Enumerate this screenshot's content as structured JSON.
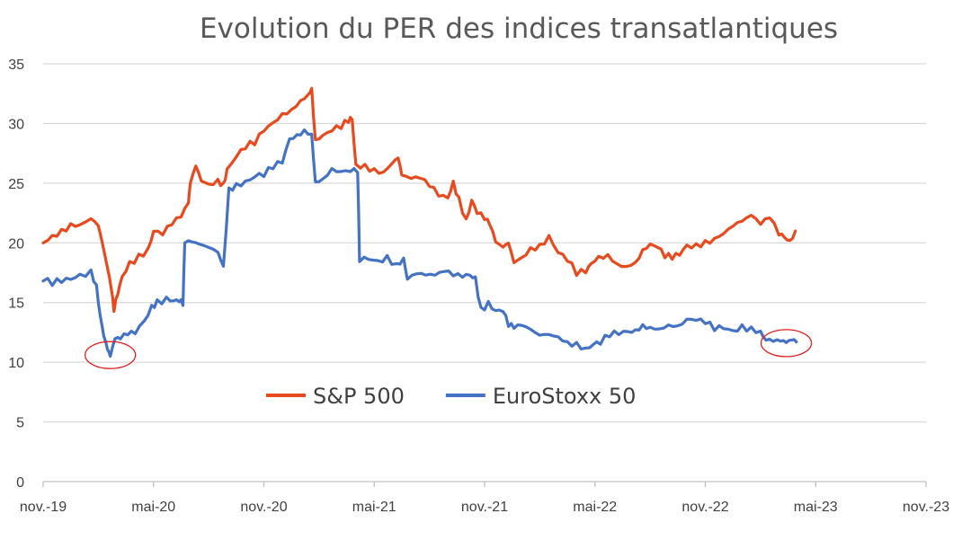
{
  "chart_data": {
    "type": "line",
    "title": "Evolution du PER des indices transatlantiques",
    "xlabel": "",
    "ylabel": "",
    "ylim": [
      0,
      35
    ],
    "yticks": [
      0,
      5,
      10,
      15,
      20,
      25,
      30,
      35
    ],
    "xlim": [
      "2019-11",
      "2023-11"
    ],
    "xticks": [
      "nov.-19",
      "mai-20",
      "nov.-20",
      "mai-21",
      "nov.-21",
      "mai-22",
      "nov.-22",
      "mai-23",
      "nov.-23"
    ],
    "grid": true,
    "legend": "bottom-center, inside plot",
    "series": [
      {
        "name": "S&P 500",
        "color": "#e8491d",
        "points": [
          [
            0,
            20
          ],
          [
            0.5,
            20.4
          ],
          [
            1,
            21
          ],
          [
            1.5,
            21.5
          ],
          [
            2,
            21.8
          ],
          [
            2.6,
            22.1
          ],
          [
            3,
            21.6
          ],
          [
            3.2,
            19.8
          ],
          [
            3.5,
            17.8
          ],
          [
            3.7,
            16
          ],
          [
            3.85,
            14.5
          ],
          [
            4.05,
            15.8
          ],
          [
            4.3,
            17.3
          ],
          [
            4.7,
            18.3
          ],
          [
            5.2,
            18.8
          ],
          [
            5.7,
            19.5
          ],
          [
            6,
            21
          ],
          [
            6.5,
            21
          ],
          [
            7,
            21.5
          ],
          [
            7.5,
            22.2
          ],
          [
            7.9,
            23
          ],
          [
            8,
            25
          ],
          [
            8.3,
            26.4
          ],
          [
            8.6,
            25.5
          ],
          [
            9,
            25
          ],
          [
            9.5,
            25.3
          ],
          [
            9.8,
            24.8
          ],
          [
            10,
            26
          ],
          [
            10.5,
            27.3
          ],
          [
            11,
            28
          ],
          [
            11.5,
            28.5
          ],
          [
            12,
            29.2
          ],
          [
            12.5,
            30
          ],
          [
            13,
            30.5
          ],
          [
            13.5,
            31.3
          ],
          [
            14,
            32
          ],
          [
            14.4,
            32.7
          ],
          [
            14.6,
            32.9
          ],
          [
            14.8,
            28.5
          ],
          [
            15.2,
            28.8
          ],
          [
            15.7,
            29.3
          ],
          [
            16.2,
            29.8
          ],
          [
            16.6,
            30.2
          ],
          [
            16.8,
            30.5
          ],
          [
            17,
            26.3
          ],
          [
            17.5,
            26.5
          ],
          [
            18,
            26
          ],
          [
            18.5,
            26.2
          ],
          [
            19,
            26.8
          ],
          [
            19.3,
            27.3
          ],
          [
            19.5,
            25.5
          ],
          [
            20,
            25.2
          ],
          [
            20.5,
            25.3
          ],
          [
            21,
            24.8
          ],
          [
            21.5,
            24.2
          ],
          [
            22,
            23.8
          ],
          [
            22.3,
            25.2
          ],
          [
            22.6,
            23.5
          ],
          [
            23,
            22
          ],
          [
            23.3,
            23.5
          ],
          [
            23.6,
            22.8
          ],
          [
            24,
            22
          ],
          [
            24.3,
            21.5
          ],
          [
            24.6,
            19.8
          ],
          [
            25,
            19.5
          ],
          [
            25.3,
            20
          ],
          [
            25.6,
            18.5
          ],
          [
            26,
            19
          ],
          [
            26.5,
            19.5
          ],
          [
            27,
            19.8
          ],
          [
            27.5,
            20.3
          ],
          [
            28,
            19.3
          ],
          [
            28.5,
            18.5
          ],
          [
            29,
            17.6
          ],
          [
            29.5,
            17.4
          ],
          [
            29.8,
            18.2
          ],
          [
            30.2,
            18.6
          ],
          [
            30.7,
            19
          ],
          [
            31.2,
            18.4
          ],
          [
            31.7,
            18.2
          ],
          [
            32.2,
            18.5
          ],
          [
            32.6,
            19.2
          ],
          [
            33,
            19.8
          ],
          [
            33.4,
            19.4
          ],
          [
            33.8,
            19
          ],
          [
            34.2,
            18.7
          ],
          [
            34.6,
            19.2
          ],
          [
            35,
            19.6
          ],
          [
            35.5,
            19.8
          ],
          [
            36,
            20
          ],
          [
            36.5,
            20.5
          ],
          [
            37,
            21
          ],
          [
            37.5,
            21.5
          ],
          [
            38,
            21.8
          ],
          [
            38.5,
            22
          ],
          [
            39,
            21.5
          ],
          [
            39.5,
            22
          ],
          [
            40,
            21
          ],
          [
            40.3,
            20.5
          ],
          [
            40.6,
            20.3
          ],
          [
            40.9,
            21
          ]
        ]
      },
      {
        "name": "EuroStoxx 50",
        "color": "#4472c4",
        "points": [
          [
            0,
            16.8
          ],
          [
            0.5,
            16.7
          ],
          [
            1,
            16.8
          ],
          [
            1.5,
            17
          ],
          [
            2,
            17.2
          ],
          [
            2.6,
            17.5
          ],
          [
            2.9,
            16.5
          ],
          [
            3.1,
            14
          ],
          [
            3.3,
            12.5
          ],
          [
            3.5,
            11
          ],
          [
            3.65,
            10.5
          ],
          [
            3.9,
            11.6
          ],
          [
            4.2,
            12
          ],
          [
            4.6,
            12.3
          ],
          [
            5,
            12.7
          ],
          [
            5.5,
            13.5
          ],
          [
            5.9,
            14.7
          ],
          [
            6.2,
            15
          ],
          [
            6.7,
            15.3
          ],
          [
            7.1,
            15.3
          ],
          [
            7.4,
            15.2
          ],
          [
            7.6,
            15
          ],
          [
            7.7,
            19.8
          ],
          [
            8.1,
            20
          ],
          [
            8.5,
            19.6
          ],
          [
            9,
            19.8
          ],
          [
            9.5,
            19.3
          ],
          [
            9.8,
            18.3
          ],
          [
            10.1,
            24.5
          ],
          [
            10.5,
            24.8
          ],
          [
            11,
            25
          ],
          [
            11.5,
            25.5
          ],
          [
            12,
            25.8
          ],
          [
            12.5,
            26.3
          ],
          [
            13,
            26.8
          ],
          [
            13.4,
            28.4
          ],
          [
            13.8,
            29
          ],
          [
            14.2,
            29.3
          ],
          [
            14.6,
            29.4
          ],
          [
            14.8,
            25.2
          ],
          [
            15.2,
            25.5
          ],
          [
            15.7,
            26
          ],
          [
            16.2,
            25.8
          ],
          [
            16.7,
            25.9
          ],
          [
            17.1,
            26
          ],
          [
            17.2,
            18.7
          ],
          [
            17.7,
            18.6
          ],
          [
            18.2,
            18.5
          ],
          [
            18.7,
            18.6
          ],
          [
            19.2,
            18.3
          ],
          [
            19.6,
            18.7
          ],
          [
            19.8,
            17.3
          ],
          [
            20.3,
            17.4
          ],
          [
            20.8,
            17.3
          ],
          [
            21.3,
            17
          ],
          [
            21.8,
            17.5
          ],
          [
            22.3,
            17.3
          ],
          [
            22.8,
            17.3
          ],
          [
            23.2,
            17.5
          ],
          [
            23.5,
            17
          ],
          [
            23.8,
            14.5
          ],
          [
            24.2,
            14.8
          ],
          [
            24.6,
            14.5
          ],
          [
            25,
            14.3
          ],
          [
            25.3,
            13.3
          ],
          [
            25.6,
            12.7
          ],
          [
            26,
            13
          ],
          [
            26.5,
            12.5
          ],
          [
            27,
            12.3
          ],
          [
            27.5,
            12.5
          ],
          [
            28,
            12.3
          ],
          [
            28.5,
            11.8
          ],
          [
            29,
            11.4
          ],
          [
            29.5,
            11.1
          ],
          [
            29.9,
            11.3
          ],
          [
            30.3,
            11.8
          ],
          [
            30.8,
            12.2
          ],
          [
            31.3,
            12.5
          ],
          [
            31.8,
            12.3
          ],
          [
            32.2,
            12.6
          ],
          [
            32.6,
            13
          ],
          [
            33,
            13.1
          ],
          [
            33.5,
            13
          ],
          [
            34,
            13.2
          ],
          [
            34.5,
            13
          ],
          [
            35,
            13.3
          ],
          [
            35.5,
            13.5
          ],
          [
            36,
            13.2
          ],
          [
            36.5,
            13
          ],
          [
            37,
            12.8
          ],
          [
            37.5,
            12.7
          ],
          [
            38,
            12.8
          ],
          [
            38.5,
            12.9
          ],
          [
            39,
            12.6
          ],
          [
            39.3,
            12.1
          ],
          [
            39.7,
            11.9
          ],
          [
            40.1,
            11.7
          ],
          [
            40.4,
            11.5
          ],
          [
            40.7,
            11.6
          ],
          [
            40.95,
            11.7
          ]
        ]
      }
    ],
    "annotations": [
      {
        "shape": "ellipse",
        "color": "#e02020",
        "x": 3.65,
        "y": 10.6
      },
      {
        "shape": "ellipse",
        "color": "#e02020",
        "x": 40.4,
        "y": 11.6
      }
    ]
  }
}
